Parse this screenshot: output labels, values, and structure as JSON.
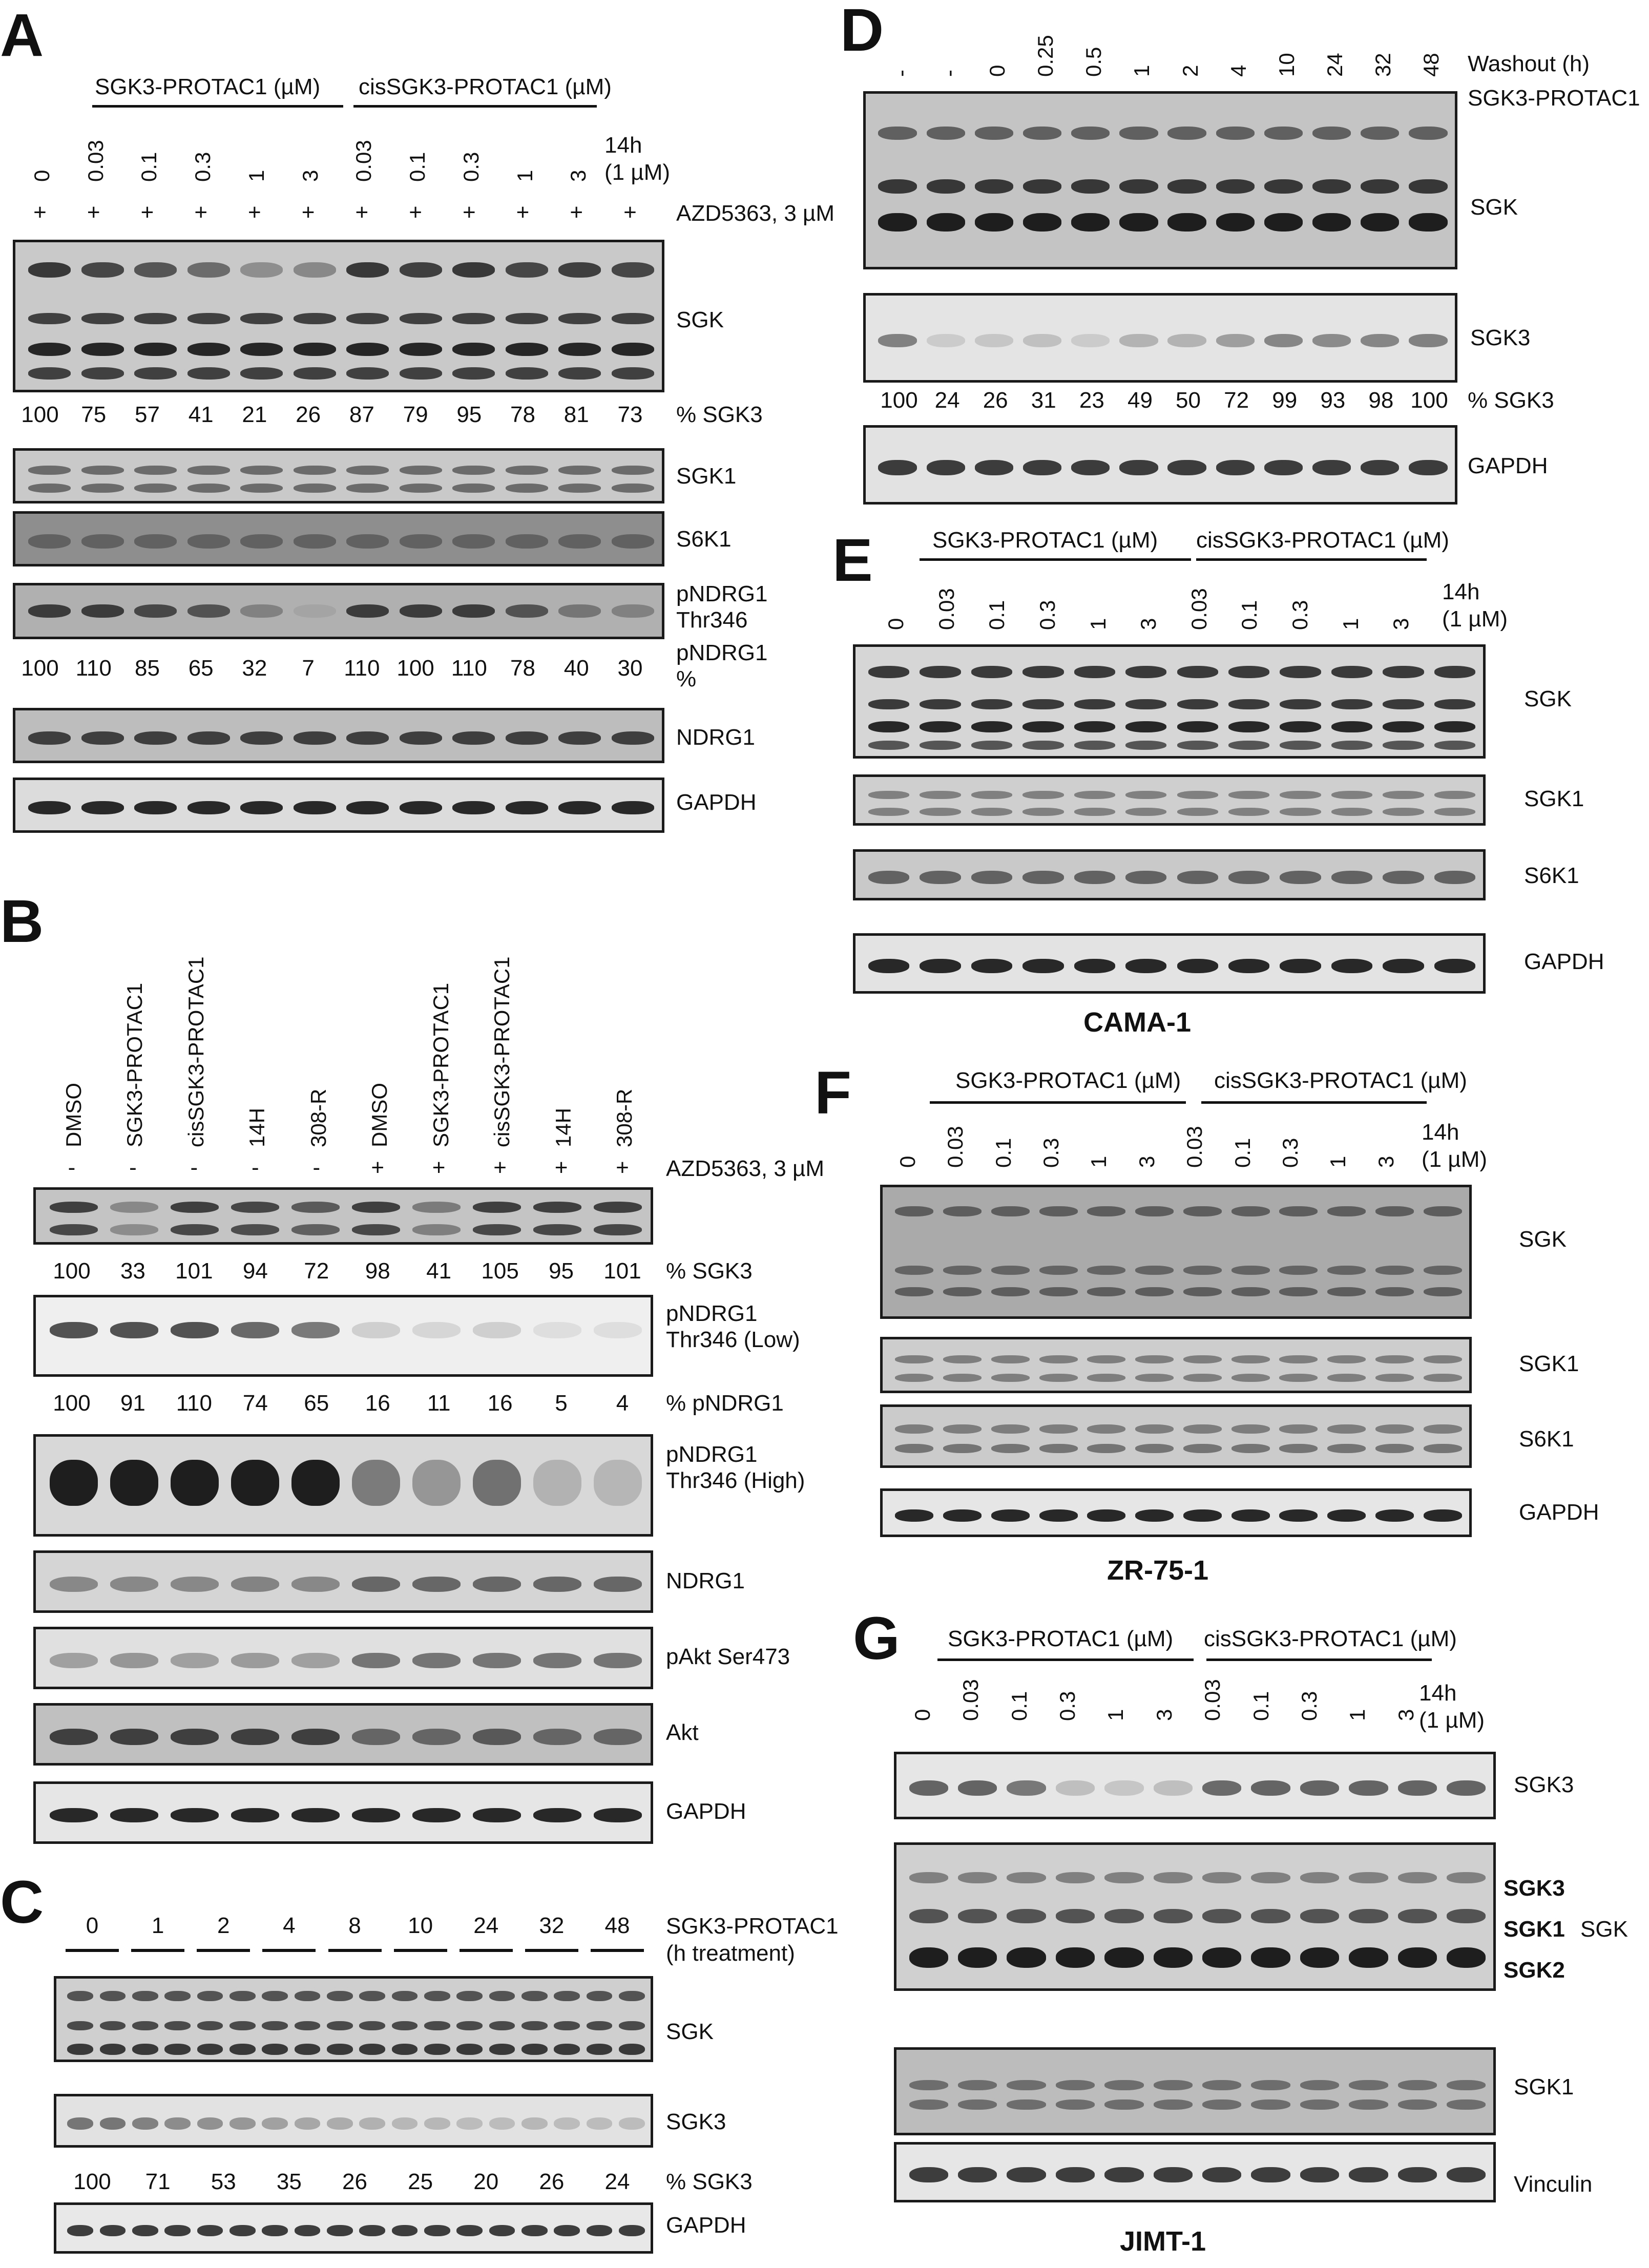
{
  "figure": {
    "panels": {
      "A": {
        "letter": "A",
        "group1": "SGK3-PROTAC1 (µM)",
        "group2": "cisSGK3-PROTAC1 (µM)",
        "lanes": [
          "0",
          "0.03",
          "0.1",
          "0.3",
          "1",
          "3",
          "0.03",
          "0.1",
          "0.3",
          "1",
          "3"
        ],
        "extra_lane": "14h\n(1 µM)",
        "treatment": [
          "+",
          "+",
          "+",
          "+",
          "+",
          "+",
          "+",
          "+",
          "+",
          "+",
          "+",
          "+"
        ],
        "treatment_label": "AZD5363, 3 µM",
        "blots": [
          "SGK",
          "SGK1",
          "S6K1",
          "pNDRG1\nThr346",
          "NDRG1",
          "GAPDH"
        ],
        "quant_sgk3": [
          "100",
          "75",
          "57",
          "41",
          "21",
          "26",
          "87",
          "79",
          "95",
          "78",
          "81",
          "73"
        ],
        "quant_sgk3_label": "% SGK3",
        "quant_pndrg1": [
          "100",
          "110",
          "85",
          "65",
          "32",
          "7",
          "110",
          "100",
          "110",
          "78",
          "40",
          "30"
        ],
        "quant_pndrg1_label": "pNDRG1\n%"
      },
      "B": {
        "letter": "B",
        "lanes": [
          "DMSO",
          "SGK3-PROTAC1",
          "cisSGK3-PROTAC1",
          "14H",
          "308-R",
          "DMSO",
          "SGK3-PROTAC1",
          "cisSGK3-PROTAC1",
          "14H",
          "308-R"
        ],
        "treatment": [
          "-",
          "-",
          "-",
          "-",
          "-",
          "+",
          "+",
          "+",
          "+",
          "+"
        ],
        "treatment_label": "AZD5363, 3 µM",
        "quant_sgk3": [
          "100",
          "33",
          "101",
          "94",
          "72",
          "98",
          "41",
          "105",
          "95",
          "101"
        ],
        "quant_sgk3_label": "% SGK3",
        "quant_pndrg1": [
          "100",
          "91",
          "110",
          "74",
          "65",
          "16",
          "11",
          "16",
          "5",
          "4"
        ],
        "quant_pndrg1_label": "% pNDRG1",
        "blots": [
          "",
          "pNDRG1\nThr346 (Low)",
          "pNDRG1\nThr346 (High)",
          "NDRG1",
          "pAkt Ser473",
          "Akt",
          "GAPDH"
        ]
      },
      "C": {
        "letter": "C",
        "timepoints": [
          "0",
          "1",
          "2",
          "4",
          "8",
          "10",
          "24",
          "32",
          "48"
        ],
        "header": "SGK3-PROTAC1\n(h treatment)",
        "blots": [
          "SGK",
          "SGK3",
          "GAPDH"
        ],
        "quant_sgk3": [
          "100",
          "71",
          "53",
          "35",
          "26",
          "25",
          "20",
          "26",
          "24"
        ],
        "quant_sgk3_label": "% SGK3"
      },
      "D": {
        "letter": "D",
        "washout": [
          "-",
          "-",
          "0",
          "0.25",
          "0.5",
          "1",
          "2",
          "4",
          "10",
          "24",
          "32",
          "48"
        ],
        "washout_label": "Washout (h)",
        "protac": [
          "-",
          "+",
          "+",
          "+",
          "+",
          "+",
          "+",
          "+",
          "+",
          "+",
          "+",
          "+"
        ],
        "protac_label": "SGK3-PROTAC1",
        "blots": [
          "SGK",
          "SGK3",
          "GAPDH"
        ],
        "quant_sgk3": [
          "100",
          "24",
          "26",
          "31",
          "23",
          "49",
          "50",
          "72",
          "99",
          "93",
          "98",
          "100"
        ],
        "quant_sgk3_label": "% SGK3"
      },
      "E": {
        "letter": "E",
        "group1": "SGK3-PROTAC1 (µM)",
        "group2": "cisSGK3-PROTAC1 (µM)",
        "lanes": [
          "0",
          "0.03",
          "0.1",
          "0.3",
          "1",
          "3",
          "0.03",
          "0.1",
          "0.3",
          "1",
          "3"
        ],
        "extra_lane": "14h\n(1 µM)",
        "blots": [
          "SGK",
          "SGK1",
          "S6K1",
          "GAPDH"
        ],
        "cell_line": "CAMA-1"
      },
      "F": {
        "letter": "F",
        "group1": "SGK3-PROTAC1 (µM)",
        "group2": "cisSGK3-PROTAC1 (µM)",
        "lanes": [
          "0",
          "0.03",
          "0.1",
          "0.3",
          "1",
          "3",
          "0.03",
          "0.1",
          "0.3",
          "1",
          "3"
        ],
        "extra_lane": "14h\n(1 µM)",
        "blots": [
          "SGK",
          "SGK1",
          "S6K1",
          "GAPDH"
        ],
        "cell_line": "ZR-75-1"
      },
      "G": {
        "letter": "G",
        "group1": "SGK3-PROTAC1 (µM)",
        "group2": "cisSGK3-PROTAC1 (µM)",
        "lanes": [
          "0",
          "0.03",
          "0.1",
          "0.3",
          "1",
          "3",
          "0.03",
          "0.1",
          "0.3",
          "1",
          "3"
        ],
        "extra_lane": "14h\n(1 µM)",
        "blots": [
          "SGK3",
          "SGK1",
          "Vinculin"
        ],
        "sgk_isoforms": [
          "SGK3",
          "SGK1",
          "SGK2"
        ],
        "sgk_group_label": "SGK",
        "cell_line": "JIMT-1"
      }
    }
  }
}
